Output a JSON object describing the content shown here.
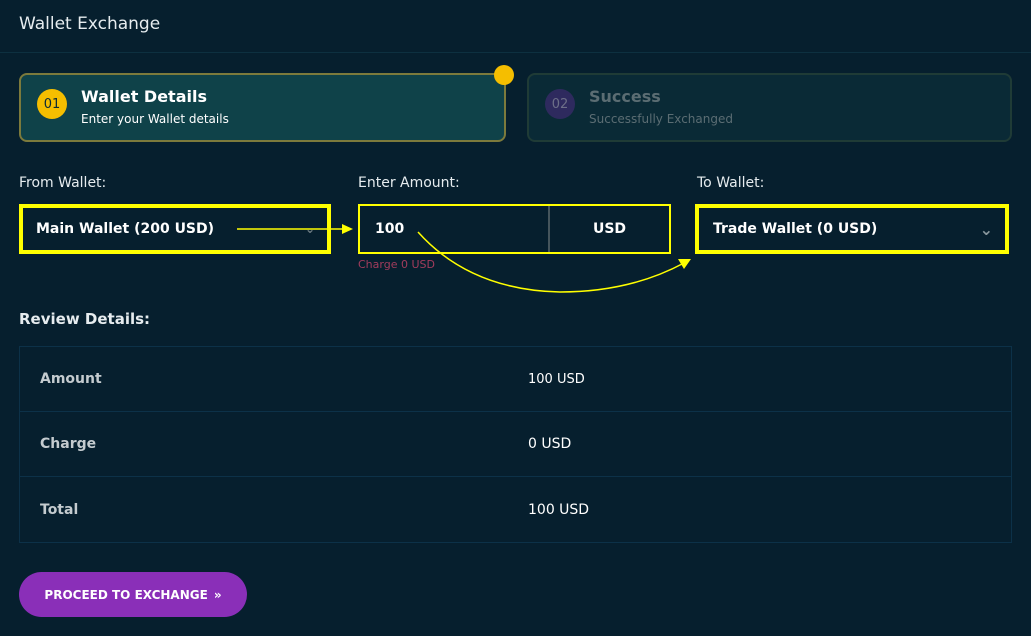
{
  "header": {
    "title": "Wallet Exchange"
  },
  "steps": [
    {
      "number": "01",
      "title": "Wallet Details",
      "subtitle": "Enter your Wallet details",
      "active": true
    },
    {
      "number": "02",
      "title": "Success",
      "subtitle": "Successfully Exchanged",
      "active": false
    }
  ],
  "form": {
    "from_label": "From Wallet:",
    "from_value": "Main Wallet (200 USD)",
    "amount_label": "Enter Amount:",
    "amount_value": "100",
    "currency": "USD",
    "charge_note": "Charge 0 USD",
    "to_label": "To Wallet:",
    "to_value": "Trade Wallet (0 USD)"
  },
  "review": {
    "title": "Review Details:",
    "rows": [
      {
        "label": "Amount",
        "value": "100 USD"
      },
      {
        "label": "Charge",
        "value": "0 USD"
      },
      {
        "label": "Total",
        "value": "100 USD"
      }
    ]
  },
  "button": {
    "label": "PROCEED TO EXCHANGE",
    "icon": "»"
  },
  "colors": {
    "highlight": "#ffff00",
    "accent": "#f5be00",
    "button": "#8a2fb8",
    "background": "#061f2e"
  }
}
